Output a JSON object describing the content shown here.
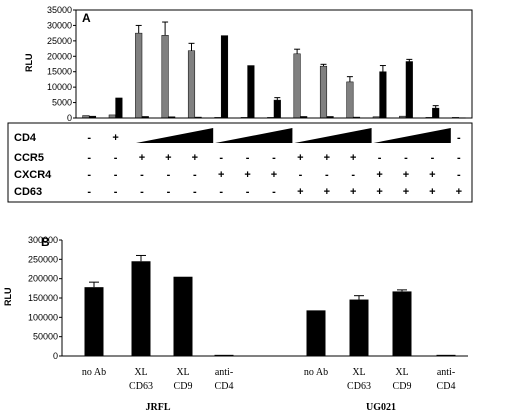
{
  "chart_data": [
    {
      "panel": "A",
      "type": "bar",
      "ylabel": "RLU",
      "ylim": [
        0,
        35000
      ],
      "yticks": [
        "0",
        "5000",
        "10000",
        "15000",
        "20000",
        "25000",
        "30000",
        "35000"
      ],
      "grid": false,
      "series": [
        {
          "color": "#808080",
          "values": [
            800,
            1000,
            27500,
            26800,
            21800,
            200,
            200,
            200,
            20800,
            16800,
            11700,
            400,
            600,
            200,
            200
          ]
        },
        {
          "color": "#000000",
          "values": [
            600,
            6500,
            500,
            400,
            300,
            26700,
            17000,
            5800,
            500,
            500,
            300,
            15000,
            18300,
            3200,
            100
          ]
        }
      ],
      "errors": [
        [
          0,
          0,
          2500,
          4300,
          2400,
          0,
          0,
          0,
          1500,
          600,
          1700,
          0,
          0,
          0,
          0
        ],
        [
          0,
          0,
          0,
          0,
          0,
          0,
          0,
          800,
          0,
          0,
          0,
          2000,
          700,
          800,
          0
        ]
      ],
      "table": {
        "rows": [
          {
            "label": "CD4",
            "marks": [
              "-",
              "+",
              "wedge",
              "",
              "",
              "wedge",
              "",
              "",
              "wedge",
              "",
              "",
              "wedge",
              "",
              "",
              "-"
            ]
          },
          {
            "label": "CCR5",
            "marks": [
              "-",
              "-",
              "+",
              "+",
              "+",
              "-",
              "-",
              "-",
              "+",
              "+",
              "+",
              "-",
              "-",
              "-",
              "-"
            ]
          },
          {
            "label": "CXCR4",
            "marks": [
              "-",
              "-",
              "-",
              "-",
              "-",
              "+",
              "+",
              "+",
              "-",
              "-",
              "-",
              "+",
              "+",
              "+",
              "-"
            ]
          },
          {
            "label": "CD63",
            "marks": [
              "-",
              "-",
              "-",
              "-",
              "-",
              "-",
              "-",
              "-",
              "+",
              "+",
              "+",
              "+",
              "+",
              "+",
              "+"
            ]
          }
        ]
      }
    },
    {
      "panel": "B",
      "type": "bar",
      "ylabel": "RLU",
      "ylim": [
        0,
        300000
      ],
      "yticks": [
        "0",
        "50000",
        "100000",
        "150000",
        "200000",
        "250000",
        "300000"
      ],
      "grid": false,
      "categories": [
        "no Ab",
        "XL CD63",
        "XL CD9",
        "anti-CD4",
        "no Ab",
        "XL CD63",
        "XL CD9",
        "anti-CD4"
      ],
      "category_lines": [
        [
          "no Ab"
        ],
        [
          "XL",
          "CD63"
        ],
        [
          "XL",
          "CD9"
        ],
        [
          "anti-",
          "CD4"
        ],
        [
          "no Ab"
        ],
        [
          "XL",
          "CD63"
        ],
        [
          "XL",
          "CD9"
        ],
        [
          "anti-",
          "CD4"
        ]
      ],
      "groups": [
        "JRFL",
        "UG021"
      ],
      "values": [
        178000,
        245000,
        205000,
        3000,
        118000,
        146000,
        167000,
        3000
      ],
      "errors": [
        13000,
        15000,
        0,
        0,
        0,
        10000,
        4000,
        0
      ],
      "color": "#000000"
    }
  ]
}
